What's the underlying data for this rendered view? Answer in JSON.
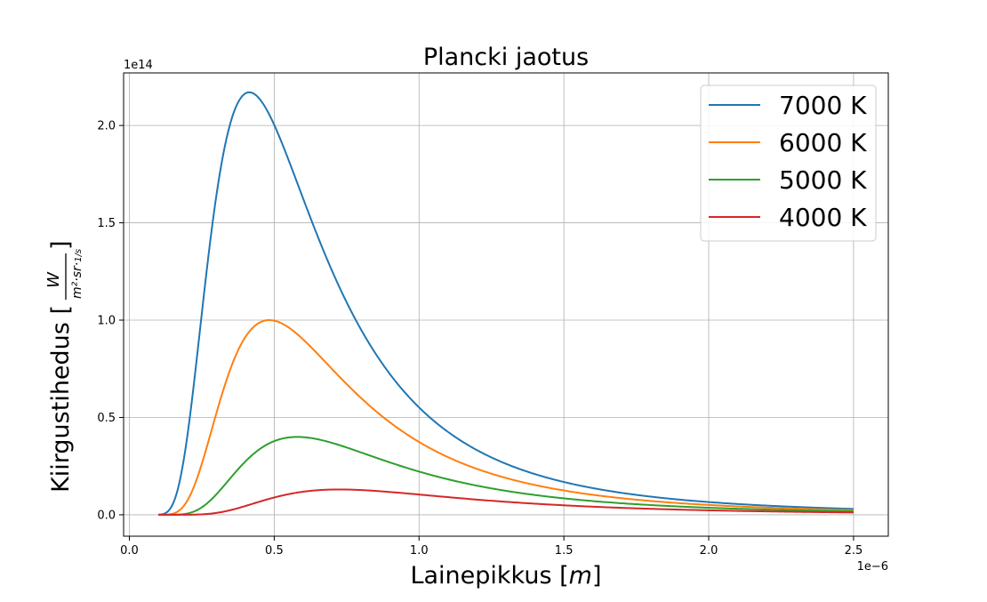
{
  "chart_data": {
    "type": "line",
    "title": "Plancki jaotus",
    "xlabel": "Lainepikkus",
    "xlabel_unit": "m",
    "ylabel": "Kiirgustihedus",
    "ylabel_unit": "W / (m² · sr · 1/s)",
    "x_offset_label": "1e−6",
    "y_offset_label": "1e14",
    "xlim": [
      -0.02,
      2.62
    ],
    "ylim": [
      -0.11,
      2.27
    ],
    "x_ticks": [
      0.0,
      0.5,
      1.0,
      1.5,
      2.0,
      2.5
    ],
    "x_tick_labels": [
      "0.0",
      "0.5",
      "1.0",
      "1.5",
      "2.0",
      "2.5"
    ],
    "y_ticks": [
      0.0,
      0.5,
      1.0,
      1.5,
      2.0
    ],
    "y_tick_labels": [
      "0.0",
      "0.5",
      "1.0",
      "1.5",
      "2.0"
    ],
    "x_range": [
      0.1,
      2.5
    ],
    "grid": true,
    "legend_position": "top-right",
    "series": [
      {
        "name": "7000 K",
        "temperature": 7000,
        "color": "#1f77b4",
        "peak_x": 0.41,
        "peak_y": 2.17
      },
      {
        "name": "6000 K",
        "temperature": 6000,
        "color": "#ff7f0e",
        "peak_x": 0.48,
        "peak_y": 1.0
      },
      {
        "name": "5000 K",
        "temperature": 5000,
        "color": "#2ca02c",
        "peak_x": 0.58,
        "peak_y": 0.4
      },
      {
        "name": "4000 K",
        "temperature": 4000,
        "color": "#d62728",
        "peak_x": 0.72,
        "peak_y": 0.13
      }
    ]
  }
}
